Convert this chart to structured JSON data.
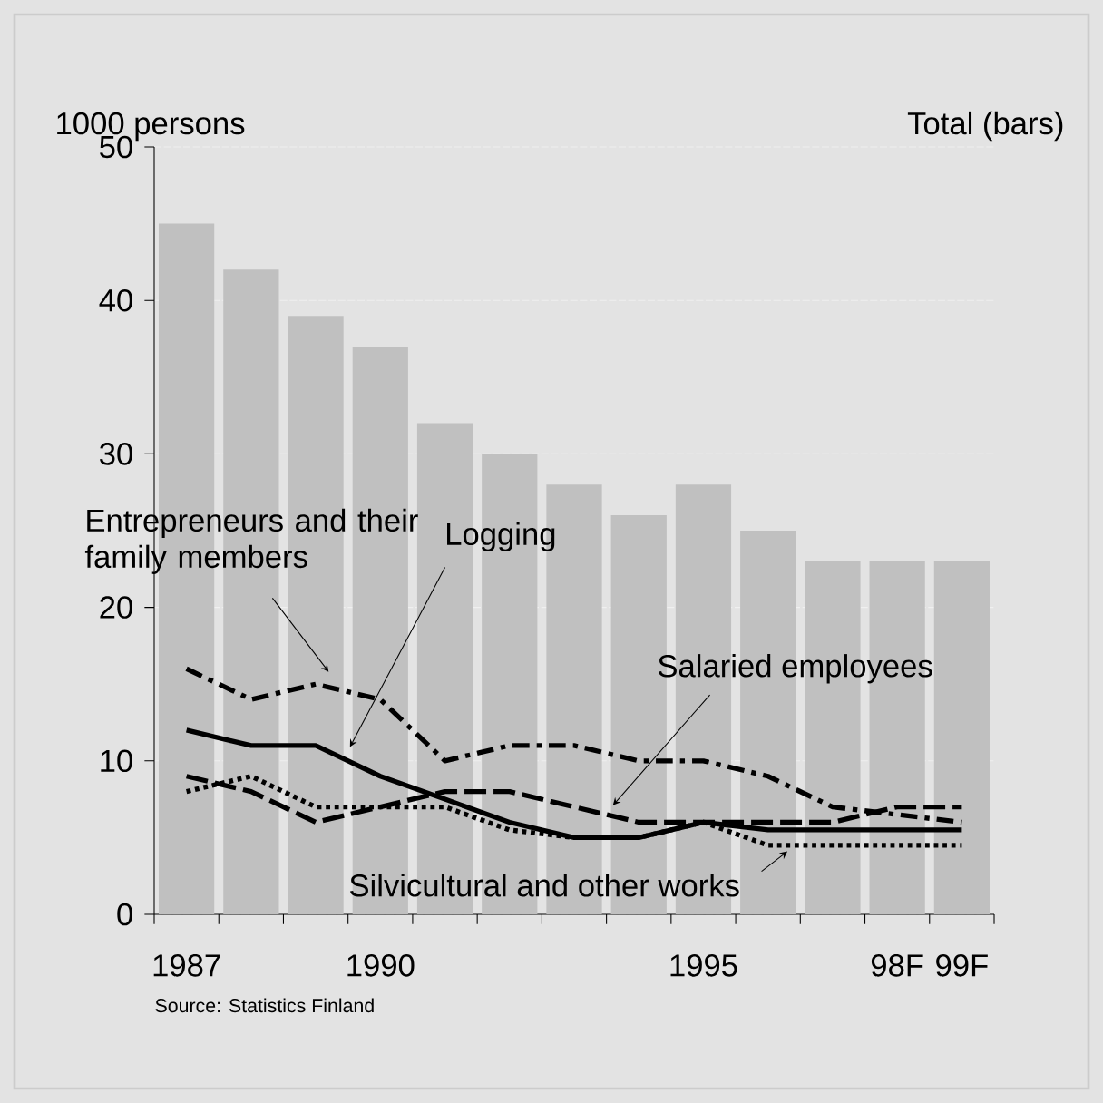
{
  "chart_data": {
    "type": "bar",
    "ylabel": "1000 persons",
    "categories": [
      "1987",
      null,
      null,
      "1990",
      null,
      null,
      null,
      null,
      "1995",
      null,
      null,
      "98F",
      "99F"
    ],
    "ylim": [
      0,
      50
    ],
    "yticks": [
      0,
      10,
      20,
      30,
      40,
      50
    ],
    "grid": "y",
    "legend": false,
    "marker": "none",
    "series": [
      {
        "color": "#c0c0c0",
        "values": [
          45,
          42,
          39,
          37,
          32,
          30,
          28,
          26,
          28,
          25,
          23,
          23,
          23
        ]
      },
      {
        "name": "Entrepreneurs and their family members",
        "type": "line",
        "line_style": "dashdot",
        "color": "#000000",
        "values": [
          16,
          14,
          15,
          14,
          10,
          11,
          11,
          10,
          10,
          9,
          7,
          6.5,
          6
        ]
      },
      {
        "name": "Logging",
        "type": "line",
        "line_style": "solid",
        "color": "#000000",
        "values": [
          12,
          11,
          11,
          9,
          7.5,
          6,
          5,
          5,
          6,
          5.5,
          5.5,
          5.5,
          5.5
        ]
      },
      {
        "name": "Salaried employees",
        "type": "line",
        "line_style": "dashed",
        "color": "#000000",
        "values": [
          9,
          8,
          6,
          7,
          8,
          8,
          7,
          6,
          6,
          6,
          6,
          7,
          7
        ]
      },
      {
        "name": "Silvicultural and other works",
        "type": "line",
        "line_style": "dotted",
        "color": "#000000",
        "values": [
          8,
          9,
          7,
          7,
          7,
          5.5,
          5,
          5,
          6,
          4.5,
          4.5,
          4.5,
          4.5
        ]
      }
    ],
    "annotations": [
      "Total (bars)",
      "Source: Statistics Finland"
    ]
  }
}
